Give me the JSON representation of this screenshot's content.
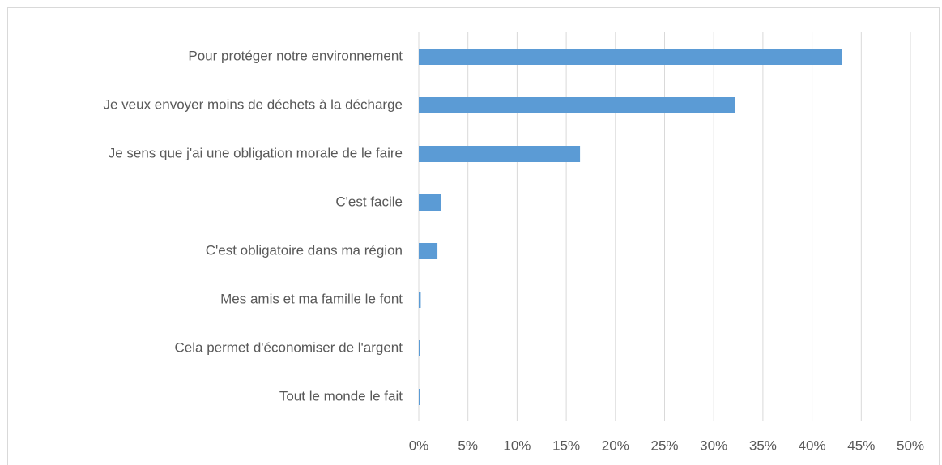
{
  "chart_data": {
    "type": "bar",
    "orientation": "horizontal",
    "categories": [
      "Pour protéger notre environnement",
      "Je veux envoyer moins de déchets à la décharge",
      "Je sens que j'ai une obligation morale de le faire",
      "C'est facile",
      "C'est obligatoire dans ma région",
      "Mes amis et ma famille le font",
      "Cela permet d'économiser de l'argent",
      "Tout le monde le fait"
    ],
    "values": [
      43,
      32.2,
      16.4,
      2.3,
      1.9,
      0.2,
      0.1,
      0.1
    ],
    "color": "#5b9bd5",
    "xlim": [
      0,
      50
    ],
    "xticks": [
      {
        "value": 0,
        "label": "0%"
      },
      {
        "value": 5,
        "label": "5%"
      },
      {
        "value": 10,
        "label": "10%"
      },
      {
        "value": 15,
        "label": "15%"
      },
      {
        "value": 20,
        "label": "20%"
      },
      {
        "value": 25,
        "label": "25%"
      },
      {
        "value": 30,
        "label": "30%"
      },
      {
        "value": 35,
        "label": "35%"
      },
      {
        "value": 40,
        "label": "40%"
      },
      {
        "value": 45,
        "label": "45%"
      },
      {
        "value": 50,
        "label": "50%"
      }
    ],
    "grid": true
  }
}
